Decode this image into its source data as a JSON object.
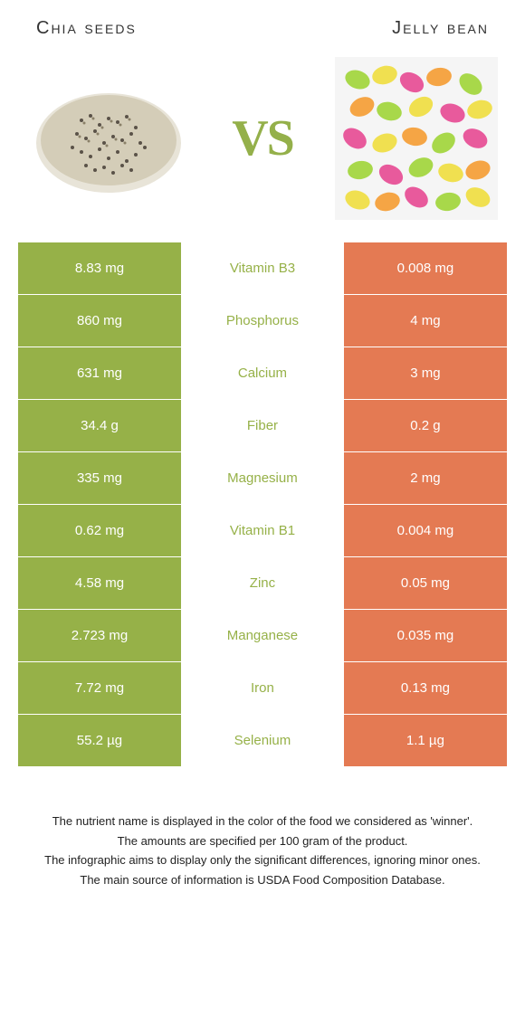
{
  "header": {
    "left_title": "Chia seeds",
    "right_title": "Jelly bean",
    "vs_label": "VS"
  },
  "colors": {
    "left_bg": "#96b148",
    "right_bg": "#e47a53",
    "nutrient_text": "#96b148",
    "vs_text": "#94b04a",
    "cell_text": "#ffffff",
    "page_bg": "#ffffff"
  },
  "rows": [
    {
      "left": "8.83 mg",
      "nutrient": "Vitamin B3",
      "right": "0.008 mg",
      "winner": "left"
    },
    {
      "left": "860 mg",
      "nutrient": "Phosphorus",
      "right": "4 mg",
      "winner": "left"
    },
    {
      "left": "631 mg",
      "nutrient": "Calcium",
      "right": "3 mg",
      "winner": "left"
    },
    {
      "left": "34.4 g",
      "nutrient": "Fiber",
      "right": "0.2 g",
      "winner": "left"
    },
    {
      "left": "335 mg",
      "nutrient": "Magnesium",
      "right": "2 mg",
      "winner": "left"
    },
    {
      "left": "0.62 mg",
      "nutrient": "Vitamin B1",
      "right": "0.004 mg",
      "winner": "left"
    },
    {
      "left": "4.58 mg",
      "nutrient": "Zinc",
      "right": "0.05 mg",
      "winner": "left"
    },
    {
      "left": "2.723 mg",
      "nutrient": "Manganese",
      "right": "0.035 mg",
      "winner": "left"
    },
    {
      "left": "7.72 mg",
      "nutrient": "Iron",
      "right": "0.13 mg",
      "winner": "left"
    },
    {
      "left": "55.2 µg",
      "nutrient": "Selenium",
      "right": "1.1 µg",
      "winner": "left"
    }
  ],
  "footer": {
    "line1": "The nutrient name is displayed in the color of the food we considered as 'winner'.",
    "line2": "The amounts are specified per 100 gram of the product.",
    "line3": "The infographic aims to display only the significant differences, ignoring minor ones.",
    "line4": "The main source of information is USDA Food Composition Database."
  }
}
